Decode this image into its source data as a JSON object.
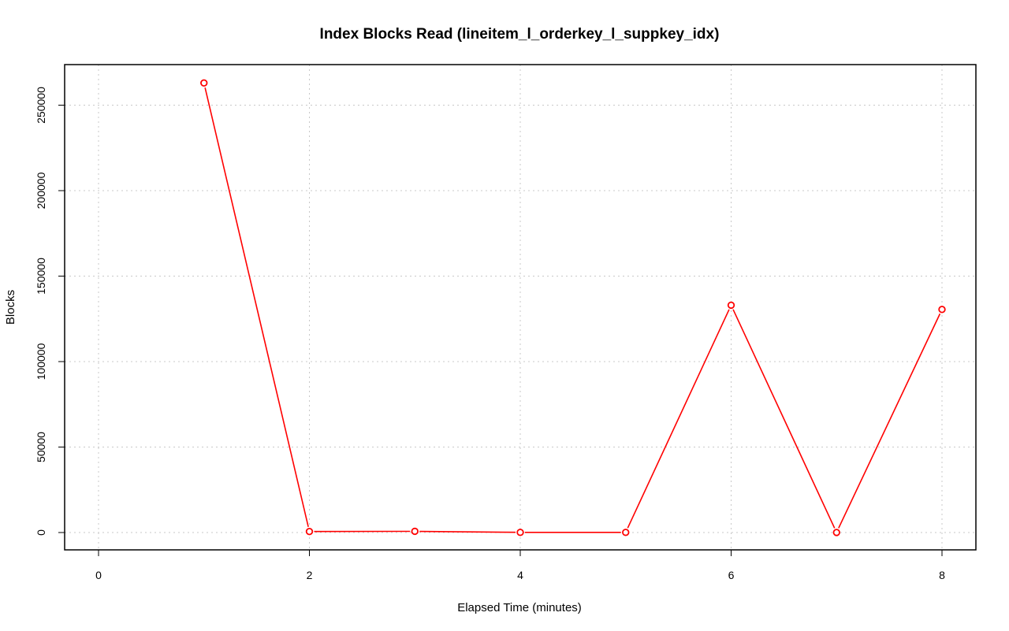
{
  "chart_data": {
    "type": "line",
    "title": "Index Blocks Read (lineitem_l_orderkey_l_suppkey_idx)",
    "xlabel": "Elapsed Time (minutes)",
    "ylabel": "Blocks",
    "xlim": [
      0,
      8
    ],
    "ylim": [
      0,
      260000
    ],
    "x_ticks": [
      0,
      2,
      4,
      6,
      8
    ],
    "y_ticks": [
      0,
      50000,
      100000,
      150000,
      200000,
      250000
    ],
    "x_tick_labels": [
      "0",
      "2",
      "4",
      "6",
      "8"
    ],
    "y_tick_labels": [
      "0",
      "50000",
      "100000",
      "150000",
      "200000",
      "250000"
    ],
    "grid": true,
    "series": [
      {
        "color": "#ff0000",
        "marker": "open-circle",
        "x": [
          1,
          2,
          3,
          4,
          5,
          6,
          7,
          8
        ],
        "y": [
          263000,
          600,
          700,
          100,
          100,
          133000,
          50,
          130500
        ]
      }
    ]
  }
}
